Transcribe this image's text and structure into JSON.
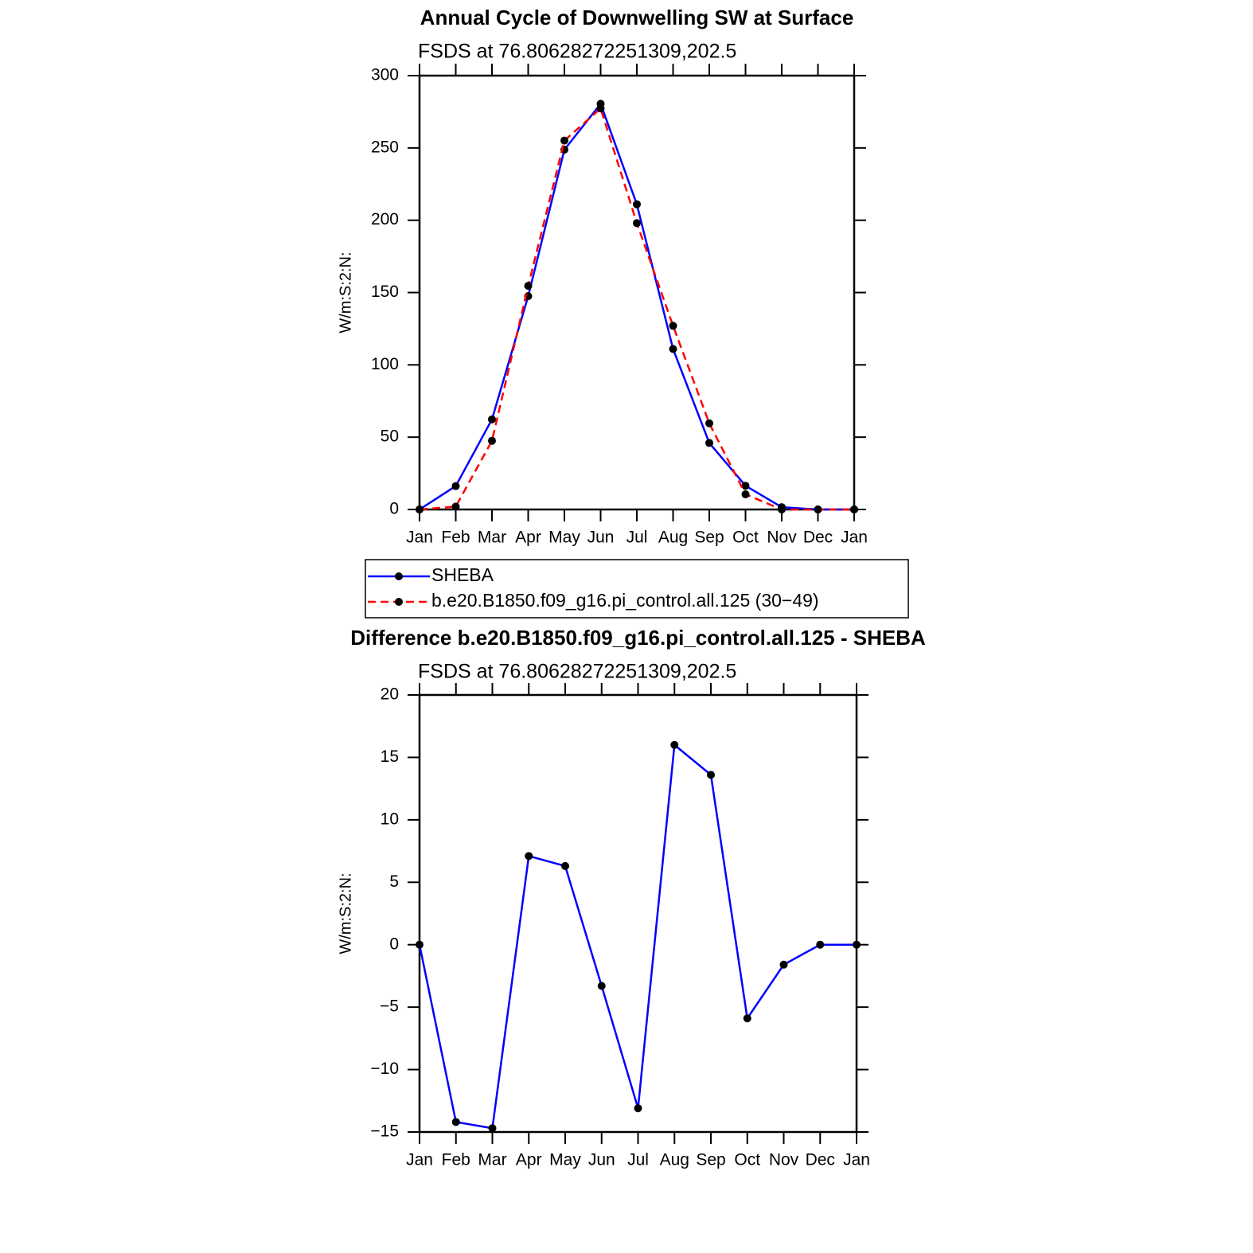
{
  "chart_data": [
    {
      "type": "line",
      "title": "Annual Cycle of Downwelling SW at Surface",
      "subtitle": "FSDS at 76.80628272251309,202.5",
      "y_label": "W/m:S:2:N:",
      "categories": [
        "Jan",
        "Feb",
        "Mar",
        "Apr",
        "May",
        "Jun",
        "Jul",
        "Aug",
        "Sep",
        "Oct",
        "Nov",
        "Dec",
        "Jan"
      ],
      "series": [
        {
          "name": "SHEBA",
          "color": "#0000ff",
          "dash": false,
          "values": [
            0,
            16.2,
            62.3,
            147.5,
            248.8,
            280.5,
            211,
            111,
            46,
            16.4,
            1.6,
            0,
            0
          ]
        },
        {
          "name": "b.e20.B1850.f09_g16.pi_control.all.125 (30−49)",
          "color": "#ff0000",
          "dash": true,
          "values": [
            0,
            2,
            47.5,
            154.6,
            255.1,
            277.3,
            198,
            127,
            59.6,
            10.5,
            0,
            0,
            0
          ]
        }
      ],
      "marker_color": "#000000",
      "ylim": [
        0,
        300
      ],
      "yticks": [
        0,
        50,
        100,
        150,
        200,
        250,
        300
      ]
    },
    {
      "type": "line",
      "title": "Difference b.e20.B1850.f09_g16.pi_control.all.125 - SHEBA",
      "subtitle": "FSDS at 76.80628272251309,202.5",
      "y_label": "W/m:S:2:N:",
      "categories": [
        "Jan",
        "Feb",
        "Mar",
        "Apr",
        "May",
        "Jun",
        "Jul",
        "Aug",
        "Sep",
        "Oct",
        "Nov",
        "Dec",
        "Jan"
      ],
      "series": [
        {
          "color": "#0000ff",
          "dash": false,
          "values": [
            0,
            -14.2,
            -14.7,
            7.1,
            6.3,
            -3.3,
            -13.1,
            16,
            13.6,
            -5.9,
            -1.6,
            0,
            0
          ]
        }
      ],
      "marker_color": "#000000",
      "ylim": [
        -15,
        20
      ],
      "yticks": [
        {
          "value": -15,
          "label": "−15"
        },
        {
          "value": -10,
          "label": "−10"
        },
        {
          "value": -5,
          "label": "−5"
        },
        0,
        5,
        10,
        15,
        20
      ]
    }
  ]
}
